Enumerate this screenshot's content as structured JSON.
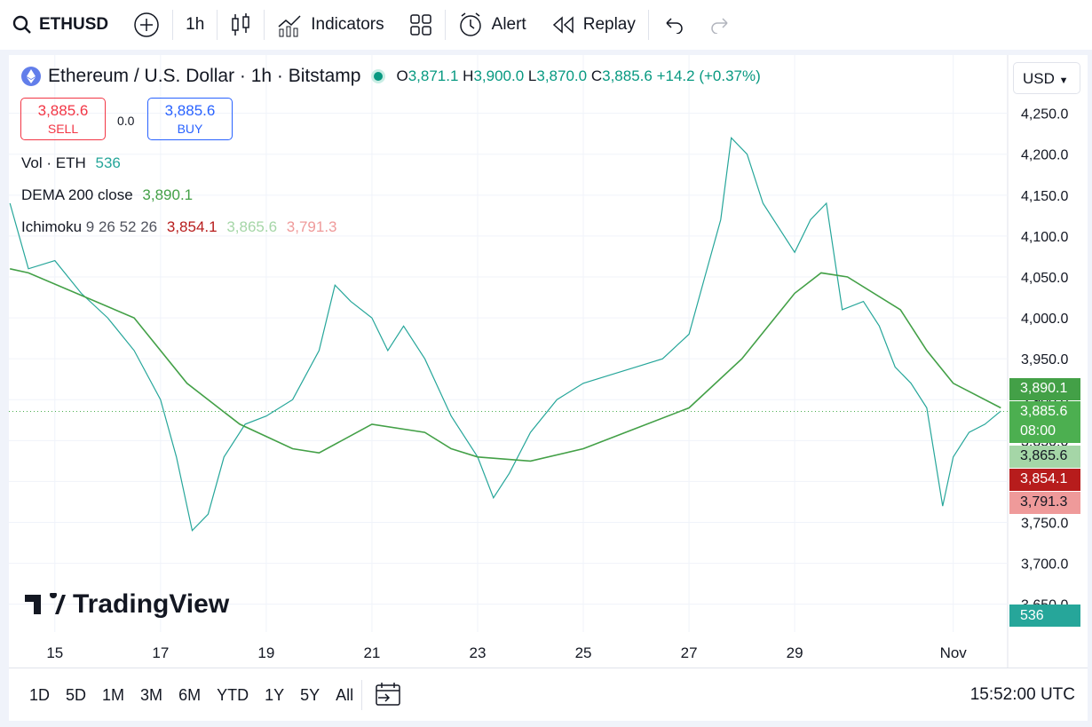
{
  "toolbar": {
    "symbol": "ETHUSD",
    "interval": "1h",
    "indicators": "Indicators",
    "alert": "Alert",
    "replay": "Replay"
  },
  "legend": {
    "title": "Ethereum / U.S. Dollar · 1h · Bitstamp",
    "open_label": "O",
    "open": "3,871.1",
    "high_label": "H",
    "high": "3,900.0",
    "low_label": "L",
    "low": "3,870.0",
    "close_label": "C",
    "close": "3,885.6",
    "change": "+14.2 (+0.37%)"
  },
  "trade": {
    "sell_price": "3,885.6",
    "sell": "SELL",
    "spread": "0.0",
    "buy_price": "3,885.6",
    "buy": "BUY"
  },
  "studies": [
    {
      "name": "Vol · ETH",
      "values": [
        {
          "text": "536",
          "color": "#26a69a"
        }
      ]
    },
    {
      "name": "DEMA 200 close",
      "values": [
        {
          "text": "3,890.1",
          "color": "#43a047"
        }
      ]
    },
    {
      "name": "Ichimoku",
      "params": "9 26 52 26",
      "values": [
        {
          "text": "3,854.1",
          "color": "#b71c1c"
        },
        {
          "text": "3,865.6",
          "color": "#a5d6a7"
        },
        {
          "text": "3,791.3",
          "color": "#ef9a9a"
        }
      ]
    }
  ],
  "currency": "USD",
  "logo": "TradingView",
  "chart_data": {
    "type": "line",
    "xlim": [
      -0.87,
      18.03
    ],
    "ylim": [
      3616,
      4280
    ],
    "xticks": [
      {
        "value": 0,
        "label": "15"
      },
      {
        "value": 2,
        "label": "17"
      },
      {
        "value": 4,
        "label": "19"
      },
      {
        "value": 6,
        "label": "21"
      },
      {
        "value": 8,
        "label": "23"
      },
      {
        "value": 10,
        "label": "25"
      },
      {
        "value": 12,
        "label": "27"
      },
      {
        "value": 14,
        "label": "29"
      },
      {
        "value": 17,
        "label": "Nov"
      }
    ],
    "yticks": [
      {
        "value": 3650,
        "label": "3,650.0"
      },
      {
        "value": 3700,
        "label": "3,700.0"
      },
      {
        "value": 3750,
        "label": "3,750.0"
      },
      {
        "value": 3800,
        "label": "3,800.0"
      },
      {
        "value": 3850,
        "label": "3,850.0"
      },
      {
        "value": 3900,
        "label": "3,900.0"
      },
      {
        "value": 3950,
        "label": "3,950.0"
      },
      {
        "value": 4000,
        "label": "4,000.0"
      },
      {
        "value": 4050,
        "label": "4,050.0"
      },
      {
        "value": 4100,
        "label": "4,100.0"
      },
      {
        "value": 4150,
        "label": "4,150.0"
      },
      {
        "value": 4200,
        "label": "4,200.0"
      },
      {
        "value": 4250,
        "label": "4,250.0"
      }
    ],
    "current_price": 3885.6,
    "series": [
      {
        "color": "#26a69a",
        "x": [
          -0.85,
          -0.5,
          0,
          0.5,
          1,
          1.5,
          2,
          2.3,
          2.6,
          2.9,
          3.2,
          3.6,
          4,
          4.5,
          5,
          5.3,
          5.6,
          6,
          6.3,
          6.6,
          7,
          7.5,
          8,
          8.3,
          8.6,
          9,
          9.5,
          10,
          10.5,
          11,
          11.5,
          12,
          12.3,
          12.6,
          12.8,
          13.1,
          13.4,
          13.7,
          14,
          14.3,
          14.6,
          14.9,
          15.3,
          15.6,
          15.9,
          16.2,
          16.5,
          16.8,
          17,
          17.3,
          17.6,
          17.9
        ],
        "values": [
          4140,
          4060,
          4070,
          4030,
          4000,
          3960,
          3900,
          3830,
          3740,
          3760,
          3830,
          3870,
          3880,
          3900,
          3960,
          4040,
          4020,
          4000,
          3960,
          3990,
          3950,
          3880,
          3830,
          3780,
          3810,
          3860,
          3900,
          3920,
          3930,
          3940,
          3950,
          3980,
          4050,
          4120,
          4220,
          4200,
          4140,
          4110,
          4080,
          4120,
          4140,
          4010,
          4020,
          3990,
          3940,
          3920,
          3890,
          3770,
          3830,
          3860,
          3870,
          3886
        ]
      },
      {
        "color": "#43a047",
        "x": [
          -0.85,
          -0.5,
          1.5,
          2.5,
          3.5,
          4.5,
          5,
          6,
          7,
          7.5,
          8,
          9,
          10,
          11,
          12,
          13,
          14,
          14.5,
          15,
          16,
          16.5,
          17,
          17.9
        ],
        "values": [
          4060,
          4055,
          4000,
          3920,
          3870,
          3840,
          3835,
          3870,
          3860,
          3840,
          3830,
          3825,
          3840,
          3865,
          3890,
          3950,
          4030,
          4055,
          4050,
          4010,
          3960,
          3920,
          3890
        ]
      }
    ]
  },
  "price_badges": [
    {
      "label": "3,890.1",
      "color": "#43a047",
      "text_color": "#ffffff"
    },
    {
      "label": "3,885.6",
      "sublabel": "08:00",
      "color": "#4caf50",
      "text_color": "#ffffff"
    },
    {
      "label": "3,865.6",
      "color": "#a5d6a7",
      "text_color": "#131722"
    },
    {
      "label": "3,854.1",
      "color": "#b71c1c",
      "text_color": "#ffffff"
    },
    {
      "label": "3,791.3",
      "color": "#ef9a9a",
      "text_color": "#131722"
    }
  ],
  "volume_badge": "536",
  "ranges": [
    "1D",
    "5D",
    "1M",
    "3M",
    "6M",
    "YTD",
    "1Y",
    "5Y",
    "All"
  ],
  "clock": "15:52:00 UTC"
}
